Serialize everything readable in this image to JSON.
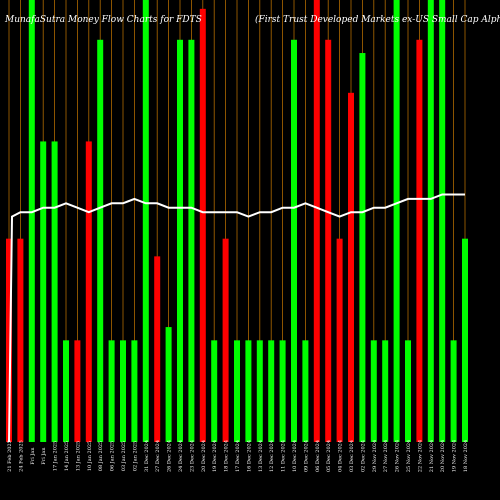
{
  "header": {
    "title_left": "MunafaSutra  Money Flow  Charts for FDTS",
    "title_right": "(First Trust Developed Markets ex-US Small Cap AlphaDEX  Fund) MunafaSutra.com"
  },
  "colors": {
    "background": "#000000",
    "up": "#00ff00",
    "down": "#ff0000",
    "grid": "#b06a00",
    "line": "#ffffff",
    "text": "#ffffff"
  },
  "chart_data": {
    "type": "bar",
    "y_scale": {
      "min": 0,
      "max": 100
    },
    "bars": [
      {
        "date": "21 Feb 2025",
        "value": 46,
        "direction": "down"
      },
      {
        "date": "24 Feb 2025",
        "value": 46,
        "direction": "down"
      },
      {
        "date": "Fri Jan",
        "value": 100,
        "direction": "up"
      },
      {
        "date": "Fri Jan",
        "value": 68,
        "direction": "up"
      },
      {
        "date": "17 Jan 2025",
        "value": 68,
        "direction": "up"
      },
      {
        "date": "14 Jan 2025",
        "value": 23,
        "direction": "up"
      },
      {
        "date": "13 Jan 2025",
        "value": 23,
        "direction": "down"
      },
      {
        "date": "10 Jan 2025",
        "value": 68,
        "direction": "down"
      },
      {
        "date": "08 Jan 2025",
        "value": 91,
        "direction": "up"
      },
      {
        "date": "06 Jan 2025",
        "value": 23,
        "direction": "up"
      },
      {
        "date": "03 Jan 2025",
        "value": 23,
        "direction": "up"
      },
      {
        "date": "02 Jan 2025",
        "value": 23,
        "direction": "up"
      },
      {
        "date": "31 Dec 2024",
        "value": 100,
        "direction": "up"
      },
      {
        "date": "27 Dec 2024",
        "value": 42,
        "direction": "down"
      },
      {
        "date": "26 Dec 2024",
        "value": 26,
        "direction": "up"
      },
      {
        "date": "24 Dec 2024",
        "value": 91,
        "direction": "up"
      },
      {
        "date": "23 Dec 2024",
        "value": 91,
        "direction": "up"
      },
      {
        "date": "20 Dec 2024",
        "value": 98,
        "direction": "down"
      },
      {
        "date": "19 Dec 2024",
        "value": 23,
        "direction": "up"
      },
      {
        "date": "18 Dec 2024",
        "value": 46,
        "direction": "down"
      },
      {
        "date": "17 Dec 2024",
        "value": 23,
        "direction": "up"
      },
      {
        "date": "16 Dec 2024",
        "value": 23,
        "direction": "up"
      },
      {
        "date": "13 Dec 2024",
        "value": 23,
        "direction": "up"
      },
      {
        "date": "12 Dec 2024",
        "value": 23,
        "direction": "up"
      },
      {
        "date": "11 Dec 2024",
        "value": 23,
        "direction": "up"
      },
      {
        "date": "10 Dec 2024",
        "value": 91,
        "direction": "up"
      },
      {
        "date": "09 Dec 2024",
        "value": 23,
        "direction": "up"
      },
      {
        "date": "06 Dec 2024",
        "value": 100,
        "direction": "down"
      },
      {
        "date": "05 Dec 2024",
        "value": 91,
        "direction": "down"
      },
      {
        "date": "04 Dec 2024",
        "value": 46,
        "direction": "down"
      },
      {
        "date": "03 Dec 2024",
        "value": 79,
        "direction": "down"
      },
      {
        "date": "02 Dec 2024",
        "value": 88,
        "direction": "up"
      },
      {
        "date": "29 Nov 2024",
        "value": 23,
        "direction": "up"
      },
      {
        "date": "27 Nov 2024",
        "value": 23,
        "direction": "up"
      },
      {
        "date": "26 Nov 2024",
        "value": 100,
        "direction": "up"
      },
      {
        "date": "25 Nov 2024",
        "value": 23,
        "direction": "up"
      },
      {
        "date": "22 Nov 2024",
        "value": 91,
        "direction": "down"
      },
      {
        "date": "21 Nov 2024",
        "value": 100,
        "direction": "up"
      },
      {
        "date": "20 Nov 2024",
        "value": 100,
        "direction": "up"
      },
      {
        "date": "19 Nov 2024",
        "value": 23,
        "direction": "up"
      },
      {
        "date": "18 Nov 2024",
        "value": 46,
        "direction": "up"
      }
    ],
    "line": [
      51,
      52,
      52,
      53,
      53,
      54,
      53,
      52,
      53,
      54,
      54,
      55,
      54,
      54,
      53,
      53,
      53,
      52,
      52,
      52,
      52,
      51,
      52,
      52,
      53,
      53,
      54,
      53,
      52,
      51,
      52,
      52,
      53,
      53,
      54,
      55,
      55,
      55,
      56,
      56,
      56
    ]
  }
}
